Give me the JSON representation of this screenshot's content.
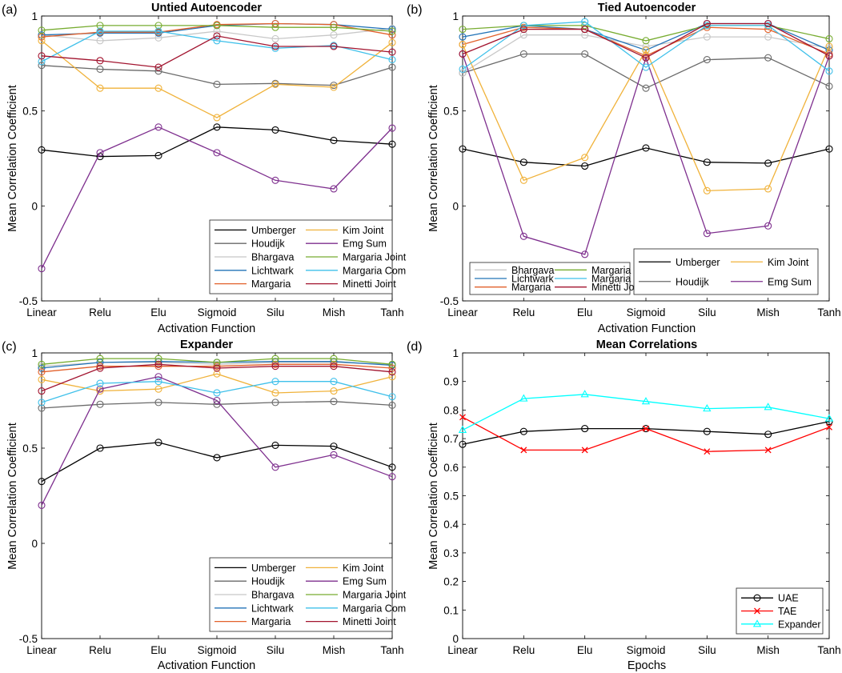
{
  "colors": {
    "Umberger": "#000000",
    "Houdijk": "#6a6a6a",
    "Bhargava": "#c8c8c8",
    "Lichtwark": "#2273b7",
    "Margaria": "#e2612b",
    "Kim Joint": "#f0b23a",
    "Emg Sum": "#7e2f8e",
    "Margaria Joint": "#77ac30",
    "Margaria Com": "#3fc0ea",
    "Minetti Joint": "#a2142f",
    "UAE": "#000000",
    "TAE": "#ff0000",
    "Expander": "#00ffff"
  },
  "chart_data": [
    {
      "type": "line",
      "panel": "(a)",
      "title": "Untied Autoencoder",
      "xlabel": "Activation Function",
      "ylabel": "Mean Correlation Coefficient",
      "categories": [
        "Linear",
        "Relu",
        "Elu",
        "Sigmoid",
        "Silu",
        "Mish",
        "Tanh"
      ],
      "ylim": [
        -0.5,
        1
      ],
      "yticks": [
        -0.5,
        0,
        0.5,
        1
      ],
      "yticklabels": [
        "-0.5",
        "0",
        "0.5",
        "1"
      ],
      "legend_position": "bottom-right",
      "legend_order": [
        "Umberger",
        "Kim Joint",
        "Houdijk",
        "Emg Sum",
        "Bhargava",
        "Margaria Joint",
        "Lichtwark",
        "Margaria Com",
        "Margaria",
        "Minetti Joint"
      ],
      "series": [
        {
          "name": "Umberger",
          "values": [
            0.295,
            0.26,
            0.265,
            0.415,
            0.4,
            0.345,
            0.325
          ]
        },
        {
          "name": "Houdijk",
          "values": [
            0.74,
            0.72,
            0.71,
            0.64,
            0.645,
            0.635,
            0.73
          ]
        },
        {
          "name": "Bhargava",
          "values": [
            0.9,
            0.87,
            0.885,
            0.92,
            0.88,
            0.9,
            0.935
          ]
        },
        {
          "name": "Lichtwark",
          "values": [
            0.9,
            0.91,
            0.91,
            0.95,
            0.96,
            0.955,
            0.93
          ]
        },
        {
          "name": "Margaria",
          "values": [
            0.89,
            0.915,
            0.915,
            0.955,
            0.96,
            0.955,
            0.9
          ]
        },
        {
          "name": "Kim Joint",
          "values": [
            0.87,
            0.62,
            0.62,
            0.465,
            0.64,
            0.625,
            0.86
          ]
        },
        {
          "name": "Emg Sum",
          "values": [
            -0.33,
            0.28,
            0.415,
            0.28,
            0.135,
            0.09,
            0.41
          ]
        },
        {
          "name": "Margaria Joint",
          "values": [
            0.925,
            0.95,
            0.95,
            0.95,
            0.94,
            0.94,
            0.92
          ]
        },
        {
          "name": "Margaria Com",
          "values": [
            0.76,
            0.92,
            0.92,
            0.87,
            0.83,
            0.845,
            0.77
          ]
        },
        {
          "name": "Minetti Joint",
          "values": [
            0.79,
            0.765,
            0.73,
            0.895,
            0.84,
            0.84,
            0.81
          ]
        }
      ]
    },
    {
      "type": "line",
      "panel": "(b)",
      "title": "Tied Autoencoder",
      "xlabel": "Activation Function",
      "ylabel": "Mean Correlation Coefficient",
      "categories": [
        "Linear",
        "Relu",
        "Elu",
        "Sigmoid",
        "Silu",
        "Mish",
        "Tanh"
      ],
      "ylim": [
        -0.5,
        1
      ],
      "yticks": [
        -0.5,
        0,
        0.5,
        1
      ],
      "yticklabels": [
        "-0.5",
        "0",
        "0.5",
        "1"
      ],
      "legend_position": "bottom-right",
      "legend_order": [
        "Bhargava",
        "Margaria Joint",
        "Lichtwark",
        "Margaria Com",
        "Margaria",
        "Minetti Joint"
      ],
      "legend2_order": [
        "Umberger",
        "Kim Joint",
        "Houdijk",
        "Emg Sum"
      ],
      "series": [
        {
          "name": "Umberger",
          "values": [
            0.3,
            0.23,
            0.21,
            0.305,
            0.23,
            0.225,
            0.3
          ]
        },
        {
          "name": "Houdijk",
          "values": [
            0.7,
            0.8,
            0.8,
            0.62,
            0.77,
            0.78,
            0.63
          ]
        },
        {
          "name": "Bhargava",
          "values": [
            0.7,
            0.9,
            0.9,
            0.84,
            0.89,
            0.89,
            0.83
          ]
        },
        {
          "name": "Lichtwark",
          "values": [
            0.89,
            0.95,
            0.93,
            0.82,
            0.96,
            0.96,
            0.82
          ]
        },
        {
          "name": "Margaria",
          "values": [
            0.85,
            0.94,
            0.93,
            0.79,
            0.94,
            0.93,
            0.8
          ]
        },
        {
          "name": "Kim Joint",
          "values": [
            0.85,
            0.135,
            0.255,
            0.82,
            0.08,
            0.09,
            0.84
          ]
        },
        {
          "name": "Emg Sum",
          "values": [
            0.8,
            -0.16,
            -0.255,
            0.78,
            -0.145,
            -0.105,
            0.79
          ]
        },
        {
          "name": "Margaria Joint",
          "values": [
            0.93,
            0.95,
            0.95,
            0.87,
            0.95,
            0.95,
            0.88
          ]
        },
        {
          "name": "Margaria Com",
          "values": [
            0.72,
            0.95,
            0.97,
            0.73,
            0.95,
            0.95,
            0.71
          ]
        },
        {
          "name": "Minetti Joint",
          "values": [
            0.8,
            0.93,
            0.93,
            0.78,
            0.96,
            0.96,
            0.79
          ]
        }
      ]
    },
    {
      "type": "line",
      "panel": "(c)",
      "title": "Expander",
      "xlabel": "Activation Function",
      "ylabel": "Mean Correlation Coefficient",
      "categories": [
        "Linear",
        "Relu",
        "Elu",
        "Sigmoid",
        "Silu",
        "Mish",
        "Tanh"
      ],
      "ylim": [
        -0.5,
        1
      ],
      "yticks": [
        -0.5,
        0,
        0.5,
        1
      ],
      "yticklabels": [
        "-0.5",
        "0",
        "0.5",
        "1"
      ],
      "legend_position": "bottom-right",
      "legend_order": [
        "Umberger",
        "Kim Joint",
        "Houdijk",
        "Emg Sum",
        "Bhargava",
        "Margaria Joint",
        "Lichtwark",
        "Margaria Com",
        "Margaria",
        "Minetti Joint"
      ],
      "series": [
        {
          "name": "Umberger",
          "values": [
            0.325,
            0.5,
            0.53,
            0.45,
            0.515,
            0.51,
            0.4
          ]
        },
        {
          "name": "Houdijk",
          "values": [
            0.71,
            0.73,
            0.74,
            0.73,
            0.74,
            0.745,
            0.725
          ]
        },
        {
          "name": "Bhargava",
          "values": [
            0.93,
            0.95,
            0.95,
            0.94,
            0.95,
            0.95,
            0.94
          ]
        },
        {
          "name": "Lichtwark",
          "values": [
            0.92,
            0.95,
            0.955,
            0.95,
            0.955,
            0.955,
            0.935
          ]
        },
        {
          "name": "Margaria",
          "values": [
            0.9,
            0.93,
            0.93,
            0.93,
            0.94,
            0.94,
            0.92
          ]
        },
        {
          "name": "Kim Joint",
          "values": [
            0.86,
            0.8,
            0.81,
            0.89,
            0.79,
            0.8,
            0.875
          ]
        },
        {
          "name": "Emg Sum",
          "values": [
            0.2,
            0.81,
            0.875,
            0.75,
            0.4,
            0.465,
            0.35
          ]
        },
        {
          "name": "Margaria Joint",
          "values": [
            0.94,
            0.97,
            0.97,
            0.95,
            0.97,
            0.97,
            0.94
          ]
        },
        {
          "name": "Margaria Com",
          "values": [
            0.74,
            0.84,
            0.85,
            0.79,
            0.85,
            0.85,
            0.77
          ]
        },
        {
          "name": "Minetti Joint",
          "values": [
            0.8,
            0.92,
            0.94,
            0.92,
            0.93,
            0.93,
            0.9
          ]
        }
      ]
    },
    {
      "type": "line",
      "panel": "(d)",
      "title": "Mean Correlations",
      "xlabel": "Epochs",
      "ylabel": "Mean Correlation Coefficient",
      "categories": [
        "Linear",
        "Relu",
        "Elu",
        "Sigmoid",
        "Silu",
        "Mish",
        "Tanh"
      ],
      "ylim": [
        0,
        1
      ],
      "yticks": [
        0,
        0.1,
        0.2,
        0.3,
        0.4,
        0.5,
        0.6,
        0.7,
        0.8,
        0.9,
        1
      ],
      "yticklabels": [
        "0",
        "0.1",
        "0.2",
        "0.3",
        "0.4",
        "0.5",
        "0.6",
        "0.7",
        "0.8",
        "0.9",
        "1"
      ],
      "legend_position": "bottom-right",
      "legend_order": [
        "UAE",
        "TAE",
        "Expander"
      ],
      "series": [
        {
          "name": "UAE",
          "marker": "circle",
          "values": [
            0.68,
            0.725,
            0.735,
            0.735,
            0.725,
            0.715,
            0.76
          ]
        },
        {
          "name": "TAE",
          "marker": "x",
          "values": [
            0.775,
            0.66,
            0.66,
            0.735,
            0.655,
            0.66,
            0.74
          ]
        },
        {
          "name": "Expander",
          "marker": "triangle",
          "values": [
            0.73,
            0.84,
            0.855,
            0.83,
            0.805,
            0.81,
            0.77
          ]
        }
      ]
    }
  ]
}
